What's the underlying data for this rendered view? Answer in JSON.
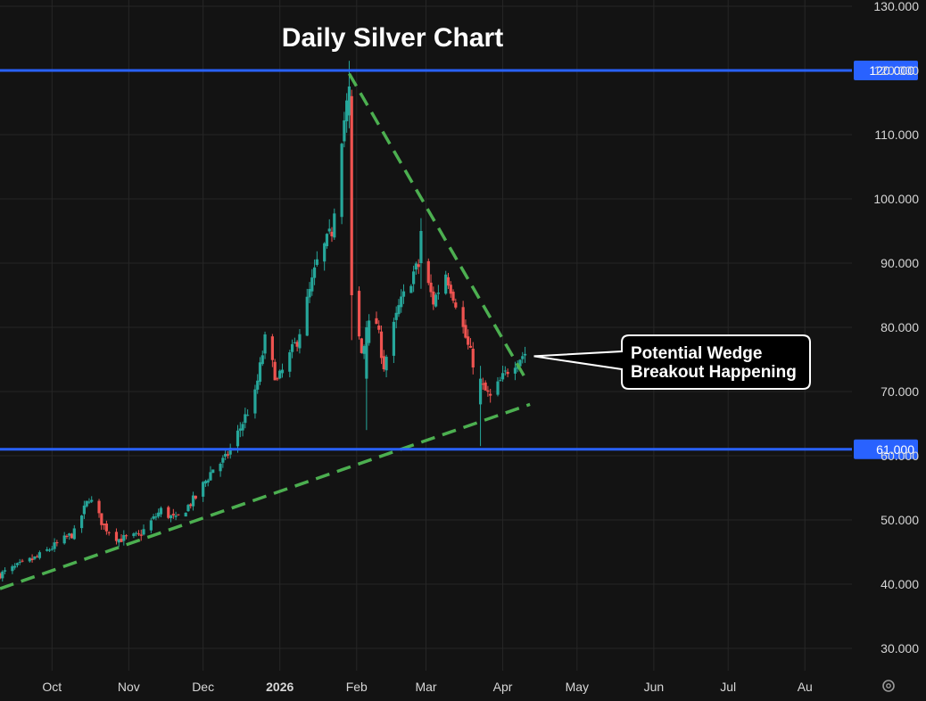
{
  "chart_data": {
    "type": "candlestick",
    "title": "Daily Silver Chart",
    "ylim": [
      25,
      132
    ],
    "y_ticks": [
      30,
      40,
      50,
      60,
      70,
      80,
      90,
      100,
      110,
      120,
      130
    ],
    "y_tick_labels": [
      "30.000",
      "40.000",
      "50.000",
      "60.000",
      "70.000",
      "80.000",
      "90.000",
      "100.000",
      "110.000",
      "120.000",
      "130.000"
    ],
    "x_range": [
      "2025-09-10",
      "2026-08-20"
    ],
    "x_ticks": [
      {
        "date": "2025-10-01",
        "label": "Oct",
        "bold": false
      },
      {
        "date": "2025-11-01",
        "label": "Nov",
        "bold": false
      },
      {
        "date": "2025-12-01",
        "label": "Dec",
        "bold": false
      },
      {
        "date": "2026-01-01",
        "label": "2026",
        "bold": true
      },
      {
        "date": "2026-02-01",
        "label": "Feb",
        "bold": false
      },
      {
        "date": "2026-03-01",
        "label": "Mar",
        "bold": false
      },
      {
        "date": "2026-04-01",
        "label": "Apr",
        "bold": false
      },
      {
        "date": "2026-05-01",
        "label": "May",
        "bold": false
      },
      {
        "date": "2026-06-01",
        "label": "Jun",
        "bold": false
      },
      {
        "date": "2026-07-01",
        "label": "Jul",
        "bold": false
      },
      {
        "date": "2026-08-01",
        "label": "Au",
        "bold": false
      }
    ],
    "horizontal_levels": [
      {
        "value": 120,
        "label": "120.000",
        "color": "#2962ff"
      },
      {
        "value": 61,
        "label": "61.000",
        "color": "#2962ff"
      }
    ],
    "trendlines": [
      {
        "name": "",
        "color": "#4caf50",
        "style": "dashed",
        "points": [
          [
            "2025-09-10",
            39.3
          ],
          [
            "2026-04-12",
            68.0
          ]
        ]
      },
      {
        "name": "",
        "color": "#4caf50",
        "style": "dashed",
        "points": [
          [
            "2026-01-29",
            119.5
          ],
          [
            "2026-04-11",
            71.5
          ]
        ]
      }
    ],
    "callout": {
      "lines": [
        "Potential Wedge",
        "Breakout Happening"
      ],
      "points_to": [
        "2026-04-10",
        75.5
      ]
    },
    "colors": {
      "up": "#26a69a",
      "down": "#ef5350",
      "background": "#131313",
      "grid": "#262626"
    },
    "anchors": [
      [
        "2025-09-10",
        41.5
      ],
      [
        "2025-09-25",
        44.2
      ],
      [
        "2025-10-10",
        48.0
      ],
      [
        "2025-10-16",
        53.5
      ],
      [
        "2025-10-22",
        49.0
      ],
      [
        "2025-10-28",
        47.0
      ],
      [
        "2025-11-05",
        47.5
      ],
      [
        "2025-11-14",
        51.5
      ],
      [
        "2025-11-20",
        50.0
      ],
      [
        "2025-11-28",
        53.5
      ],
      [
        "2025-12-05",
        58.0
      ],
      [
        "2025-12-10",
        59.5
      ],
      [
        "2025-12-15",
        63.5
      ],
      [
        "2025-12-22",
        69.5
      ],
      [
        "2025-12-26",
        78.0
      ],
      [
        "2025-12-31",
        71.5
      ],
      [
        "2026-01-08",
        78.0
      ],
      [
        "2026-01-16",
        90.0
      ],
      [
        "2026-01-22",
        95.0
      ],
      [
        "2026-01-26",
        110.0
      ],
      [
        "2026-01-29",
        117.0
      ],
      [
        "2026-01-30",
        85.0
      ],
      [
        "2026-02-03",
        76.0
      ],
      [
        "2026-02-08",
        83.0
      ],
      [
        "2026-02-12",
        74.0
      ],
      [
        "2026-02-18",
        83.0
      ],
      [
        "2026-02-24",
        88.5
      ],
      [
        "2026-02-27",
        90.0
      ],
      [
        "2026-03-04",
        84.0
      ],
      [
        "2026-03-09",
        88.5
      ],
      [
        "2026-03-13",
        84.0
      ],
      [
        "2026-03-18",
        77.0
      ],
      [
        "2026-03-23",
        71.0
      ],
      [
        "2026-03-27",
        69.0
      ],
      [
        "2026-03-31",
        71.5
      ],
      [
        "2026-04-04",
        74.0
      ],
      [
        "2026-04-10",
        76.0
      ]
    ]
  }
}
